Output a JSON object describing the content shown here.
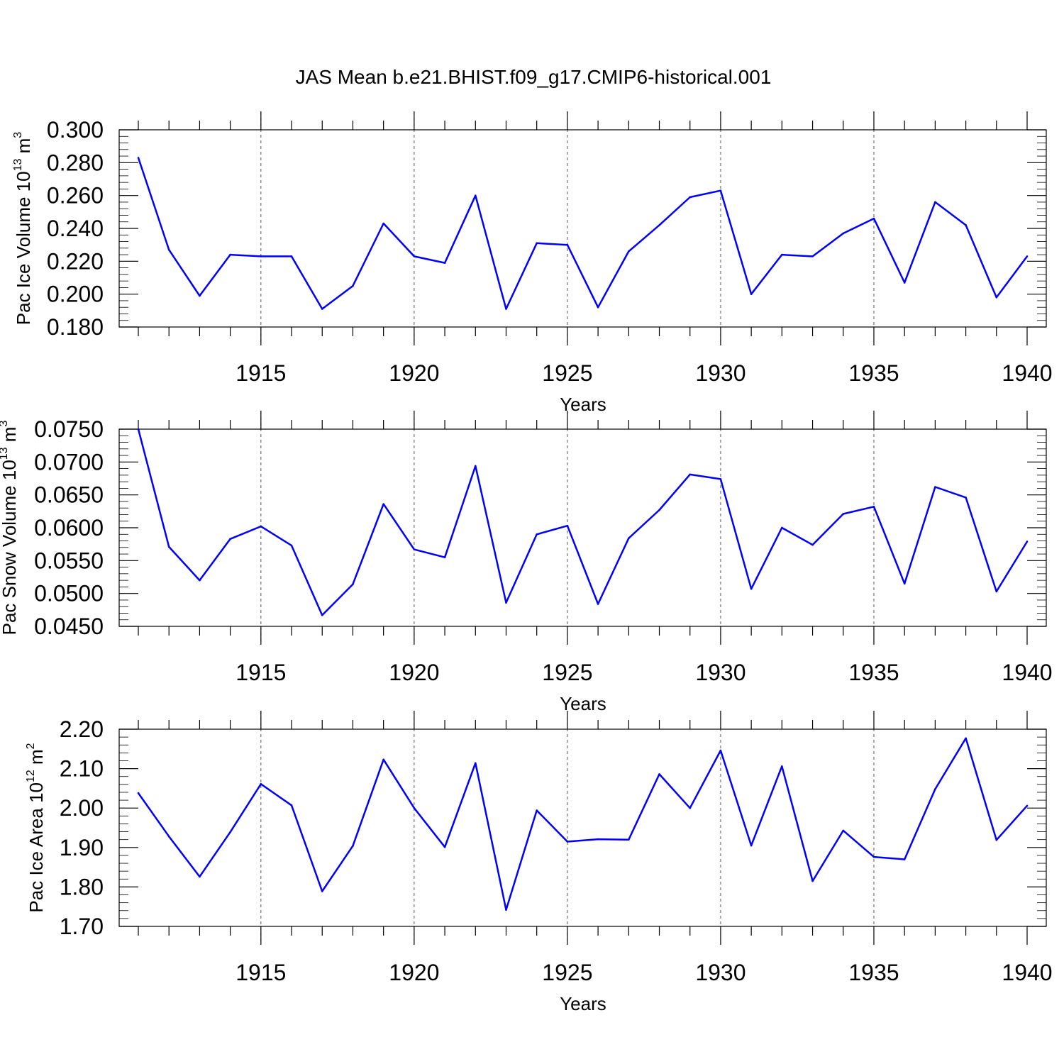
{
  "title": "JAS Mean b.e21.BHIST.f09_g17.CMIP6-historical.001",
  "colors": {
    "series": "#0000ff",
    "axis": "#000000",
    "grid": "#555555"
  },
  "chart_data": [
    {
      "type": "line",
      "ylabel": "Pac Ice Volume 10",
      "ylabel_exp": "13",
      "ylabel_unit": "m",
      "ylabel_unit_exp": "3",
      "xlabel": "Years",
      "xlim": [
        1911,
        1940
      ],
      "ylim": [
        0.18,
        0.3
      ],
      "yticks": [
        "0.180",
        "0.200",
        "0.220",
        "0.240",
        "0.260",
        "0.280",
        "0.300"
      ],
      "xticks": [
        "1915",
        "1920",
        "1925",
        "1930",
        "1935",
        "1940"
      ],
      "grid": "vertical-dashed",
      "x": [
        1911,
        1912,
        1913,
        1914,
        1915,
        1916,
        1917,
        1918,
        1919,
        1920,
        1921,
        1922,
        1923,
        1924,
        1925,
        1926,
        1927,
        1928,
        1929,
        1930,
        1931,
        1932,
        1933,
        1934,
        1935,
        1936,
        1937,
        1938,
        1939,
        1940
      ],
      "values": [
        0.283,
        0.227,
        0.199,
        0.224,
        0.223,
        0.223,
        0.191,
        0.205,
        0.243,
        0.223,
        0.219,
        0.26,
        0.191,
        0.231,
        0.23,
        0.192,
        0.226,
        0.242,
        0.259,
        0.263,
        0.2,
        0.224,
        0.223,
        0.237,
        0.246,
        0.207,
        0.256,
        0.242,
        0.198,
        0.223
      ]
    },
    {
      "type": "line",
      "ylabel": "Pac Snow Volume 10",
      "ylabel_exp": "13",
      "ylabel_unit": "m",
      "ylabel_unit_exp": "3",
      "xlabel": "Years",
      "xlim": [
        1911,
        1940
      ],
      "ylim": [
        0.045,
        0.075
      ],
      "yticks": [
        "0.0450",
        "0.0500",
        "0.0550",
        "0.0600",
        "0.0650",
        "0.0700",
        "0.0750"
      ],
      "xticks": [
        "1915",
        "1920",
        "1925",
        "1930",
        "1935",
        "1940"
      ],
      "grid": "vertical-dashed",
      "x": [
        1911,
        1912,
        1913,
        1914,
        1915,
        1916,
        1917,
        1918,
        1919,
        1920,
        1921,
        1922,
        1923,
        1924,
        1925,
        1926,
        1927,
        1928,
        1929,
        1930,
        1931,
        1932,
        1933,
        1934,
        1935,
        1936,
        1937,
        1938,
        1939,
        1940
      ],
      "values": [
        0.075,
        0.0571,
        0.052,
        0.0583,
        0.0602,
        0.0573,
        0.0467,
        0.0514,
        0.0636,
        0.0567,
        0.0555,
        0.0694,
        0.0486,
        0.059,
        0.0603,
        0.0484,
        0.0584,
        0.0627,
        0.0681,
        0.0674,
        0.0507,
        0.06,
        0.0574,
        0.0621,
        0.0632,
        0.0515,
        0.0662,
        0.0646,
        0.0503,
        0.0579
      ]
    },
    {
      "type": "line",
      "ylabel": "Pac Ice Area 10",
      "ylabel_exp": "12",
      "ylabel_unit": "m",
      "ylabel_unit_exp": "2",
      "xlabel": "Years",
      "xlim": [
        1911,
        1940
      ],
      "ylim": [
        1.7,
        2.2
      ],
      "yticks": [
        "1.70",
        "1.80",
        "1.90",
        "2.00",
        "2.10",
        "2.20"
      ],
      "xticks": [
        "1915",
        "1920",
        "1925",
        "1930",
        "1935",
        "1940"
      ],
      "grid": "vertical-dashed",
      "x": [
        1911,
        1912,
        1913,
        1914,
        1915,
        1916,
        1917,
        1918,
        1919,
        1920,
        1921,
        1922,
        1923,
        1924,
        1925,
        1926,
        1927,
        1928,
        1929,
        1930,
        1931,
        1932,
        1933,
        1934,
        1935,
        1936,
        1937,
        1938,
        1939,
        1940
      ],
      "values": [
        2.038,
        1.928,
        1.826,
        1.939,
        2.061,
        2.007,
        1.789,
        1.904,
        2.123,
        2.0,
        1.901,
        2.114,
        1.742,
        1.994,
        1.915,
        1.921,
        1.92,
        2.086,
        2.0,
        2.146,
        1.905,
        2.106,
        1.815,
        1.943,
        1.876,
        1.87,
        2.048,
        2.177,
        1.919,
        2.006
      ]
    }
  ]
}
